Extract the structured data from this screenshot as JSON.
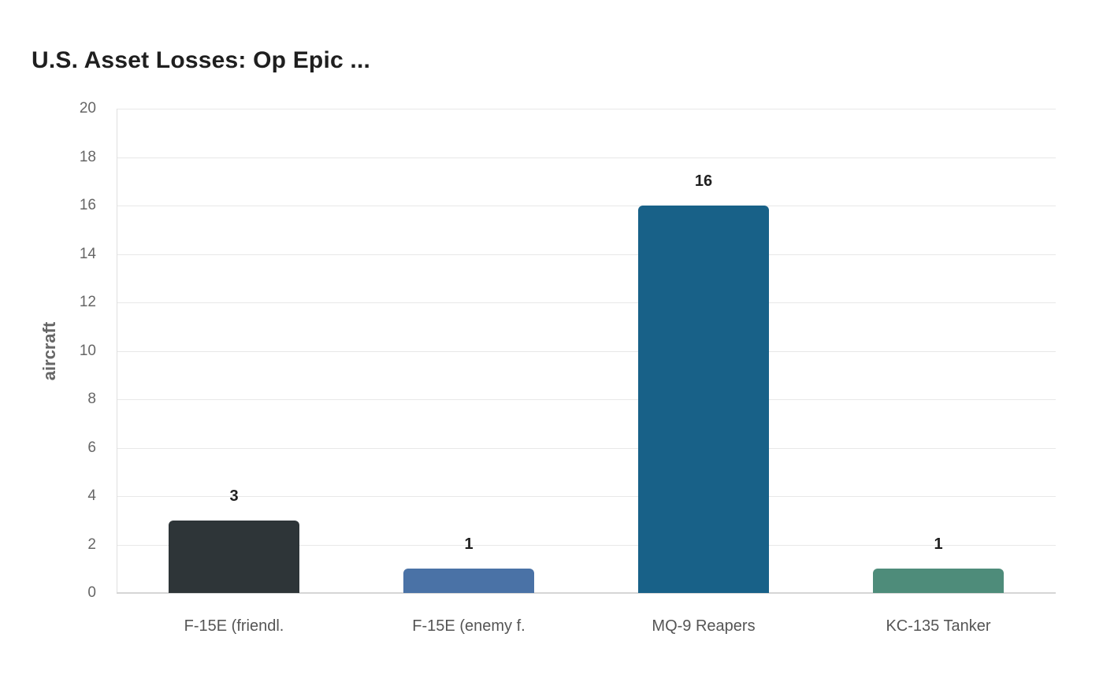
{
  "chart_data": {
    "type": "bar",
    "title": "U.S. Asset Losses: Op Epic ...",
    "xlabel": "",
    "ylabel": "aircraft",
    "categories": [
      "F-15E (friendl.",
      "F-15E (enemy f.",
      "MQ-9 Reapers",
      "KC-135 Tanker"
    ],
    "values": [
      3,
      1,
      16,
      1
    ],
    "value_labels": [
      "3",
      "1",
      "16",
      "1"
    ],
    "colors": [
      "#2e3538",
      "#4a72a6",
      "#186188",
      "#4e8c7a"
    ],
    "ylim": [
      0,
      20
    ],
    "yticks": [
      "0",
      "2",
      "4",
      "6",
      "8",
      "10",
      "12",
      "14",
      "16",
      "18",
      "20"
    ],
    "grid": true,
    "legend": "none"
  }
}
